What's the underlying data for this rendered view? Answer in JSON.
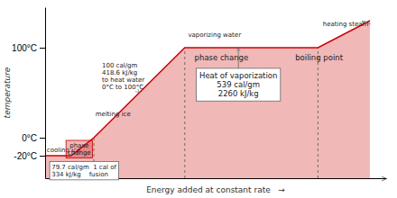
{
  "chart_data": {
    "type": "area",
    "color": "#cc0000",
    "x": [
      0.0,
      0.08,
      0.15,
      0.43,
      0.84,
      1.0
    ],
    "values": [
      -20,
      -20,
      0,
      100,
      100,
      130
    ],
    "xlim": [
      0.0,
      1.05
    ],
    "ylim": [
      -45,
      145
    ],
    "yticks": [
      {
        "value": -20,
        "label": "-20°C"
      },
      {
        "value": 0,
        "label": "0°C"
      },
      {
        "value": 100,
        "label": "100°C"
      }
    ],
    "tick_labels": "y",
    "grid": false,
    "xlabel": "Energy added at constant rate   →",
    "ylabel": "temperature",
    "dashed_x": [
      0.15,
      0.43,
      0.84
    ],
    "annotations": [
      {
        "text": "100 cal/gm\n418.6 kJ/kg\nto heat water\n0°C to 100°C",
        "x": 0.175,
        "y": 68,
        "arrow": [
          0.29,
          50
        ]
      },
      {
        "text": "melting ice",
        "x": 0.155,
        "y": 22
      },
      {
        "text": "cooling ice",
        "x": 0.005,
        "y": -14
      },
      {
        "text": "heating steam",
        "x": 0.855,
        "y": 126,
        "arrow": [
          0.975,
          129
        ]
      },
      {
        "text": "vaporizing water",
        "x": 0.44,
        "y": 110
      },
      {
        "text": "phase change",
        "x": 0.46,
        "y": 93
      },
      {
        "text": "boiling point",
        "x": 0.77,
        "y": 93
      },
      {
        "text": "phase\nchange",
        "x": 0.105,
        "y": -5
      },
      {
        "text": "Heat of vaporization\n539 cal/gm\n2260 kJ/kg",
        "x": 0.595,
        "y": 58,
        "arrow": [
          0.595,
          100
        ]
      },
      {
        "text": "79.7 cal/gm  1 cal of\n334 kJ/kg    fusion",
        "x": 0.02,
        "y": -37
      }
    ]
  }
}
